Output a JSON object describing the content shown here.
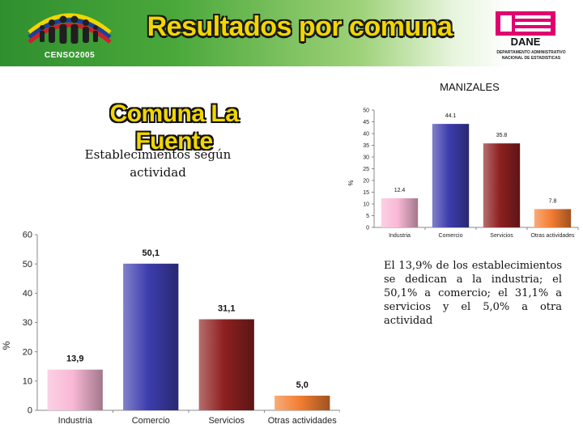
{
  "header": {
    "title": "Resultados por comuna",
    "logo_text": "CENSO2005",
    "dane_logo_text": "DANE",
    "dane_name_line1": "DEPARTAMENTO ADMINISTRATIVO",
    "dane_name_line2": "NACIONAL DE ESTADISTICAS",
    "colors": {
      "green": "#3c9a35",
      "yellow": "#f2d600",
      "dane_pink": "#e0006f"
    }
  },
  "city": "MANIZALES",
  "comuna_title": "Comuna La Fuente",
  "subtitle_line1": "Establecimientos según",
  "subtitle_line2": "actividad",
  "paragraph": "El 13,9% de los establecimientos se dedican a la industria; el 50,1% a comercio; el 31,1% a servicios y el 5,0% a otra actividad",
  "chart_data": [
    {
      "type": "bar",
      "title": "MANIZALES",
      "categories": [
        "Industria",
        "Comercio",
        "Servicios",
        "Otras actividades"
      ],
      "values": [
        12.4,
        44.1,
        35.8,
        7.8
      ],
      "value_labels": [
        "12.4",
        "44.1",
        "35.8",
        "7.8"
      ],
      "ylabel": "% ",
      "ylim": [
        0,
        50
      ],
      "yticks": [
        0,
        5,
        10,
        15,
        20,
        25,
        30,
        35,
        40,
        45,
        50
      ],
      "colors": [
        "#f9b8d6",
        "#3d3dae",
        "#8e2020",
        "#f47e32"
      ],
      "grid": false
    },
    {
      "type": "bar",
      "title": "Comuna La Fuente",
      "categories": [
        "Industria",
        "Comercio",
        "Servicios",
        "Otras actividades"
      ],
      "values": [
        13.9,
        50.1,
        31.1,
        5.0
      ],
      "value_labels": [
        "13,9",
        "50,1",
        "31,1",
        "5,0"
      ],
      "ylabel": "%",
      "ylim": [
        0,
        60
      ],
      "yticks": [
        0,
        10,
        20,
        30,
        40,
        50,
        60
      ],
      "colors": [
        "#f9b8d6",
        "#3d3dae",
        "#8e2020",
        "#f47e32"
      ],
      "grid": false
    }
  ]
}
